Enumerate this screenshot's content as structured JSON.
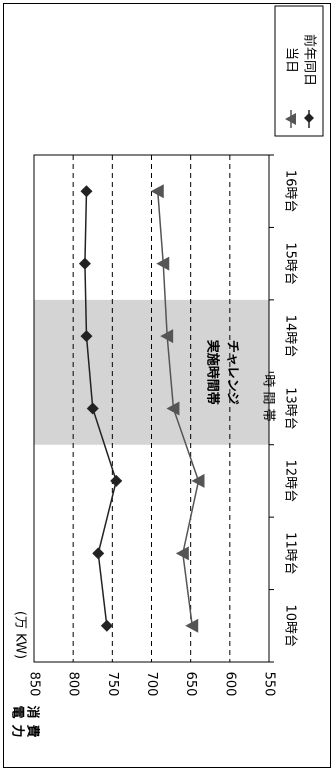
{
  "chart_data": {
    "type": "line",
    "orientation": "rotated-90-clockwise",
    "categories": [
      "10時台",
      "11時台",
      "12時台",
      "13時台",
      "14時台",
      "15時台",
      "16時台"
    ],
    "y_ticks": [
      "550",
      "600",
      "650",
      "700",
      "750",
      "800",
      "850"
    ],
    "ylim": [
      550,
      850
    ],
    "unit": "(万 KW)",
    "xlabel": "時 間 帯",
    "ylabel": "消費電力",
    "grid": "dashed-horizontal",
    "legend_position": "top-right",
    "shaded_band": {
      "from": "13時台",
      "to": "14時台",
      "label_line1": "チャレンジ",
      "label_line2": "実施時間帯"
    },
    "series": [
      {
        "name": "前年同日",
        "marker": "diamond",
        "color": "#222222",
        "values": [
          757,
          768,
          745,
          775,
          783,
          785,
          783
        ]
      },
      {
        "name": "当日",
        "marker": "triangle",
        "color": "#555555",
        "values": [
          648,
          660,
          640,
          672,
          680,
          685,
          692
        ]
      }
    ]
  }
}
